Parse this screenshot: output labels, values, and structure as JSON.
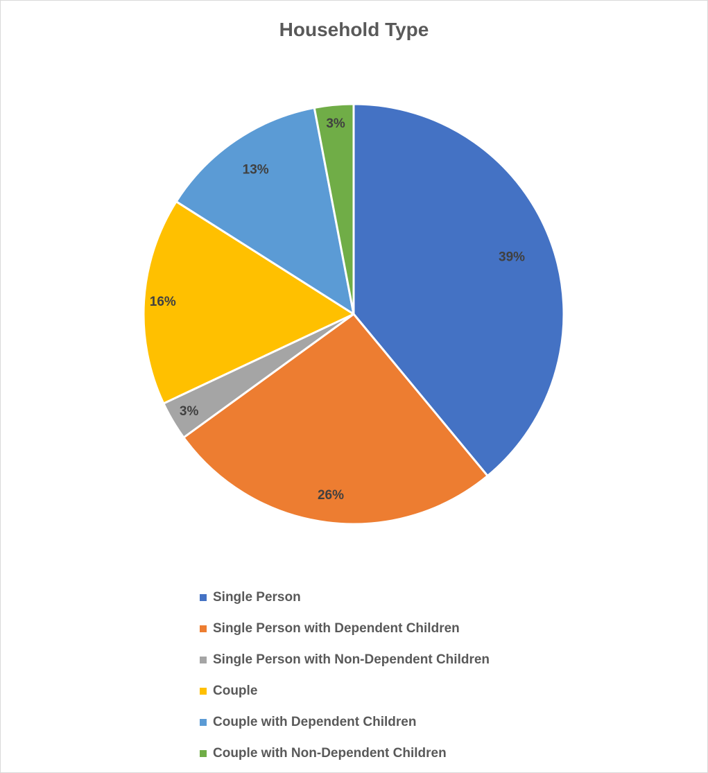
{
  "chart_data": {
    "type": "pie",
    "title": "Household Type",
    "start_angle_deg": 0,
    "direction": "clockwise",
    "legend_position": "bottom",
    "slices": [
      {
        "name": "Single Person",
        "value": 39,
        "label": "39%",
        "color": "#4472C4"
      },
      {
        "name": "Single Person with Dependent Children",
        "value": 26,
        "label": "26%",
        "color": "#ED7D31"
      },
      {
        "name": "Single Person with Non-Dependent Children",
        "value": 3,
        "label": "3%",
        "color": "#A5A5A5"
      },
      {
        "name": "Couple",
        "value": 16,
        "label": "16%",
        "color": "#FFC000"
      },
      {
        "name": "Couple with Dependent Children",
        "value": 13,
        "label": "13%",
        "color": "#5B9BD5"
      },
      {
        "name": "Couple with Non-Dependent Children",
        "value": 3,
        "label": "3%",
        "color": "#70AD47"
      }
    ]
  }
}
